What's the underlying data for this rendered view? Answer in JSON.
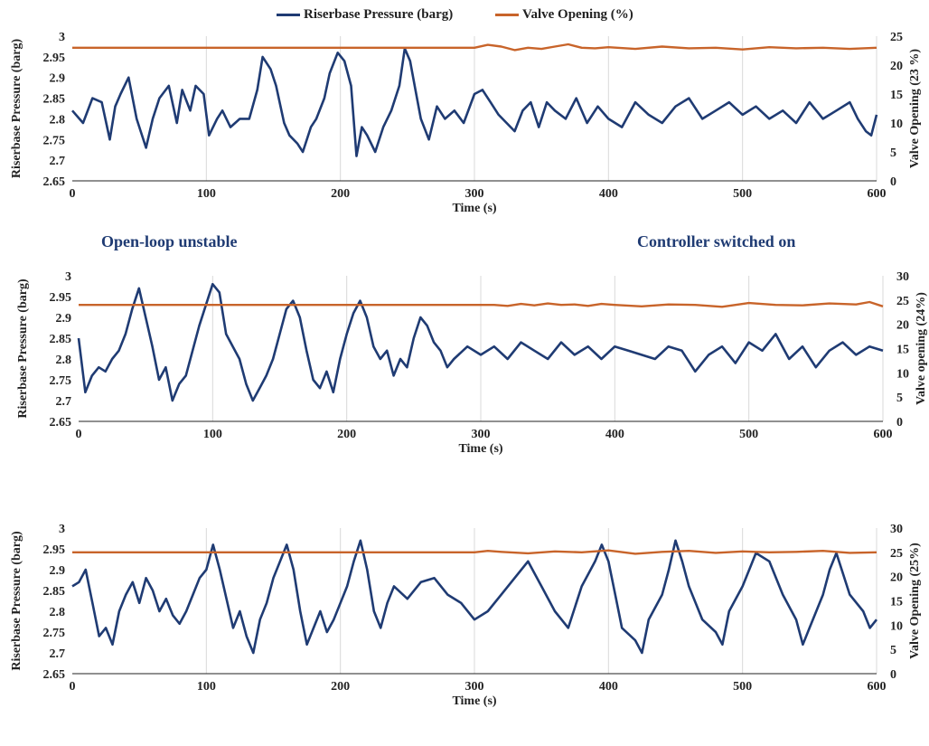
{
  "legend": {
    "pressure_label": "Riserbase Pressure (barg)",
    "valve_label": "Valve Opening (%)"
  },
  "colors": {
    "pressure": "#1f3b73",
    "valve": "#c8642a",
    "annotation": "#1f3b73",
    "axis": "#222222",
    "grid": "#d9d9d9"
  },
  "annotations": {
    "left": "Open-loop unstable",
    "right": "Controller switched on"
  },
  "chart_data": [
    {
      "type": "line",
      "xlabel": "Time (s)",
      "ylabel": "Riserbase Pressure (barg)",
      "y2label": "Valve Opening (23 %)",
      "xlim": [
        0,
        600
      ],
      "ylim": [
        2.65,
        3
      ],
      "y2lim": [
        0,
        25
      ],
      "xticks": [
        0,
        100,
        200,
        300,
        400,
        500,
        600
      ],
      "yticks": [
        "2.65",
        "2.7",
        "2.75",
        "2.8",
        "2.85",
        "2.9",
        "2.95",
        "3"
      ],
      "y2ticks": [
        "0",
        "5",
        "10",
        "15",
        "20",
        "25"
      ],
      "grid": "vertical",
      "series": [
        {
          "name": "Riserbase Pressure (barg)",
          "axis": "left",
          "x": [
            0,
            8,
            15,
            22,
            28,
            32,
            36,
            42,
            48,
            55,
            60,
            65,
            72,
            78,
            82,
            88,
            92,
            98,
            102,
            108,
            112,
            118,
            125,
            132,
            138,
            142,
            148,
            152,
            158,
            162,
            168,
            172,
            178,
            182,
            188,
            192,
            198,
            203,
            208,
            212,
            216,
            220,
            226,
            232,
            238,
            244,
            248,
            252,
            256,
            260,
            266,
            272,
            278,
            285,
            292,
            300,
            306,
            312,
            318,
            324,
            330,
            336,
            342,
            348,
            354,
            360,
            368,
            376,
            384,
            392,
            400,
            410,
            420,
            430,
            440,
            450,
            460,
            470,
            480,
            490,
            500,
            510,
            520,
            530,
            540,
            550,
            560,
            570,
            580,
            586,
            592,
            596,
            600
          ],
          "y": [
            2.82,
            2.79,
            2.85,
            2.84,
            2.75,
            2.83,
            2.86,
            2.9,
            2.8,
            2.73,
            2.8,
            2.85,
            2.88,
            2.79,
            2.87,
            2.82,
            2.88,
            2.86,
            2.76,
            2.8,
            2.82,
            2.78,
            2.8,
            2.8,
            2.87,
            2.95,
            2.92,
            2.88,
            2.79,
            2.76,
            2.74,
            2.72,
            2.78,
            2.8,
            2.85,
            2.91,
            2.96,
            2.94,
            2.88,
            2.71,
            2.78,
            2.76,
            2.72,
            2.78,
            2.82,
            2.88,
            2.97,
            2.94,
            2.87,
            2.8,
            2.75,
            2.83,
            2.8,
            2.82,
            2.79,
            2.86,
            2.87,
            2.84,
            2.81,
            2.79,
            2.77,
            2.82,
            2.84,
            2.78,
            2.84,
            2.82,
            2.8,
            2.85,
            2.79,
            2.83,
            2.8,
            2.78,
            2.84,
            2.81,
            2.79,
            2.83,
            2.85,
            2.8,
            2.82,
            2.84,
            2.81,
            2.83,
            2.8,
            2.82,
            2.79,
            2.84,
            2.8,
            2.82,
            2.84,
            2.8,
            2.77,
            2.76,
            2.81
          ]
        },
        {
          "name": "Valve Opening (%)",
          "axis": "right",
          "x": [
            0,
            300,
            310,
            320,
            330,
            340,
            350,
            360,
            370,
            380,
            390,
            400,
            420,
            440,
            460,
            480,
            500,
            520,
            540,
            560,
            580,
            600
          ],
          "y": [
            23,
            23,
            23.5,
            23.2,
            22.6,
            23,
            22.8,
            23.2,
            23.6,
            23,
            22.9,
            23.1,
            22.8,
            23.2,
            22.9,
            23,
            22.7,
            23.1,
            22.9,
            23,
            22.8,
            23
          ]
        }
      ]
    },
    {
      "type": "line",
      "xlabel": "Time (s)",
      "ylabel": "Riserbase Pressure (barg)",
      "y2label": "Valve opening (24%)",
      "xlim": [
        0,
        600
      ],
      "ylim": [
        2.65,
        3
      ],
      "y2lim": [
        0,
        30
      ],
      "xticks": [
        0,
        100,
        200,
        300,
        400,
        500,
        600
      ],
      "yticks": [
        "2.65",
        "2.7",
        "2.75",
        "2.8",
        "2.85",
        "2.9",
        "2.95",
        "3"
      ],
      "y2ticks": [
        "0",
        "5",
        "10",
        "15",
        "20",
        "25",
        "30"
      ],
      "grid": "vertical",
      "series": [
        {
          "name": "Riserbase Pressure (barg)",
          "axis": "left",
          "x": [
            0,
            5,
            10,
            15,
            20,
            25,
            30,
            35,
            40,
            45,
            50,
            55,
            60,
            65,
            70,
            75,
            80,
            85,
            90,
            95,
            100,
            105,
            110,
            115,
            120,
            125,
            130,
            135,
            140,
            145,
            150,
            155,
            160,
            165,
            170,
            175,
            180,
            185,
            190,
            195,
            200,
            205,
            210,
            215,
            220,
            225,
            230,
            235,
            240,
            245,
            250,
            255,
            260,
            265,
            270,
            275,
            280,
            290,
            300,
            310,
            320,
            330,
            340,
            350,
            360,
            370,
            380,
            390,
            400,
            410,
            420,
            430,
            440,
            450,
            460,
            470,
            480,
            490,
            500,
            510,
            520,
            530,
            540,
            550,
            560,
            570,
            580,
            590,
            600
          ],
          "y": [
            2.85,
            2.72,
            2.76,
            2.78,
            2.77,
            2.8,
            2.82,
            2.86,
            2.92,
            2.97,
            2.9,
            2.83,
            2.75,
            2.78,
            2.7,
            2.74,
            2.76,
            2.82,
            2.88,
            2.93,
            2.98,
            2.96,
            2.86,
            2.83,
            2.8,
            2.74,
            2.7,
            2.73,
            2.76,
            2.8,
            2.86,
            2.92,
            2.94,
            2.9,
            2.82,
            2.75,
            2.73,
            2.77,
            2.72,
            2.8,
            2.86,
            2.91,
            2.94,
            2.9,
            2.83,
            2.8,
            2.82,
            2.76,
            2.8,
            2.78,
            2.85,
            2.9,
            2.88,
            2.84,
            2.82,
            2.78,
            2.8,
            2.83,
            2.81,
            2.83,
            2.8,
            2.84,
            2.82,
            2.8,
            2.84,
            2.81,
            2.83,
            2.8,
            2.83,
            2.82,
            2.81,
            2.8,
            2.83,
            2.82,
            2.77,
            2.81,
            2.83,
            2.79,
            2.84,
            2.82,
            2.86,
            2.8,
            2.83,
            2.78,
            2.82,
            2.84,
            2.81,
            2.83,
            2.82
          ]
        },
        {
          "name": "Valve Opening (%)",
          "axis": "right",
          "x": [
            0,
            300,
            310,
            320,
            330,
            340,
            350,
            360,
            370,
            380,
            390,
            400,
            420,
            440,
            460,
            480,
            500,
            520,
            540,
            560,
            580,
            590,
            600
          ],
          "y": [
            24,
            24,
            24,
            23.8,
            24.2,
            23.9,
            24.3,
            24,
            24.1,
            23.8,
            24.2,
            24,
            23.7,
            24.1,
            24,
            23.6,
            24.4,
            24,
            23.9,
            24.3,
            24.1,
            24.6,
            23.7
          ]
        }
      ]
    },
    {
      "type": "line",
      "xlabel": "Time (s)",
      "ylabel": "Riserbase Pressure (barg)",
      "y2label": "Valve Opening (25%)",
      "xlim": [
        0,
        600
      ],
      "ylim": [
        2.65,
        3
      ],
      "y2lim": [
        0,
        30
      ],
      "xticks": [
        0,
        100,
        200,
        300,
        400,
        500,
        600
      ],
      "yticks": [
        "2.65",
        "2.7",
        "2.75",
        "2.8",
        "2.85",
        "2.9",
        "2.95",
        "3"
      ],
      "y2ticks": [
        "0",
        "5",
        "10",
        "15",
        "20",
        "25",
        "30"
      ],
      "grid": "vertical",
      "series": [
        {
          "name": "Riserbase Pressure (barg)",
          "axis": "left",
          "x": [
            0,
            5,
            10,
            15,
            20,
            25,
            30,
            35,
            40,
            45,
            50,
            55,
            60,
            65,
            70,
            75,
            80,
            85,
            90,
            95,
            100,
            105,
            110,
            115,
            120,
            125,
            130,
            135,
            140,
            145,
            150,
            155,
            160,
            165,
            170,
            175,
            180,
            185,
            190,
            195,
            200,
            205,
            210,
            215,
            220,
            225,
            230,
            235,
            240,
            250,
            260,
            270,
            280,
            290,
            300,
            310,
            320,
            330,
            340,
            350,
            360,
            370,
            380,
            390,
            395,
            400,
            405,
            410,
            420,
            425,
            430,
            440,
            445,
            450,
            455,
            460,
            470,
            480,
            485,
            490,
            500,
            510,
            520,
            530,
            540,
            545,
            550,
            560,
            565,
            570,
            580,
            590,
            595,
            600
          ],
          "y": [
            2.86,
            2.87,
            2.9,
            2.82,
            2.74,
            2.76,
            2.72,
            2.8,
            2.84,
            2.87,
            2.82,
            2.88,
            2.85,
            2.8,
            2.83,
            2.79,
            2.77,
            2.8,
            2.84,
            2.88,
            2.9,
            2.96,
            2.9,
            2.83,
            2.76,
            2.8,
            2.74,
            2.7,
            2.78,
            2.82,
            2.88,
            2.92,
            2.96,
            2.9,
            2.8,
            2.72,
            2.76,
            2.8,
            2.75,
            2.78,
            2.82,
            2.86,
            2.92,
            2.97,
            2.9,
            2.8,
            2.76,
            2.82,
            2.86,
            2.83,
            2.87,
            2.88,
            2.84,
            2.82,
            2.78,
            2.8,
            2.84,
            2.88,
            2.92,
            2.86,
            2.8,
            2.76,
            2.86,
            2.92,
            2.96,
            2.92,
            2.84,
            2.76,
            2.73,
            2.7,
            2.78,
            2.84,
            2.9,
            2.97,
            2.92,
            2.86,
            2.78,
            2.75,
            2.72,
            2.8,
            2.86,
            2.94,
            2.92,
            2.84,
            2.78,
            2.72,
            2.76,
            2.84,
            2.9,
            2.94,
            2.84,
            2.8,
            2.76,
            2.78
          ]
        },
        {
          "name": "Valve Opening (%)",
          "axis": "right",
          "x": [
            0,
            300,
            310,
            320,
            340,
            360,
            380,
            400,
            420,
            440,
            460,
            480,
            500,
            520,
            540,
            560,
            580,
            600
          ],
          "y": [
            25,
            25,
            25.3,
            25.1,
            24.8,
            25.2,
            25,
            25.4,
            24.7,
            25.1,
            25.3,
            24.9,
            25.2,
            25,
            25.1,
            25.3,
            24.9,
            25
          ]
        }
      ]
    }
  ]
}
